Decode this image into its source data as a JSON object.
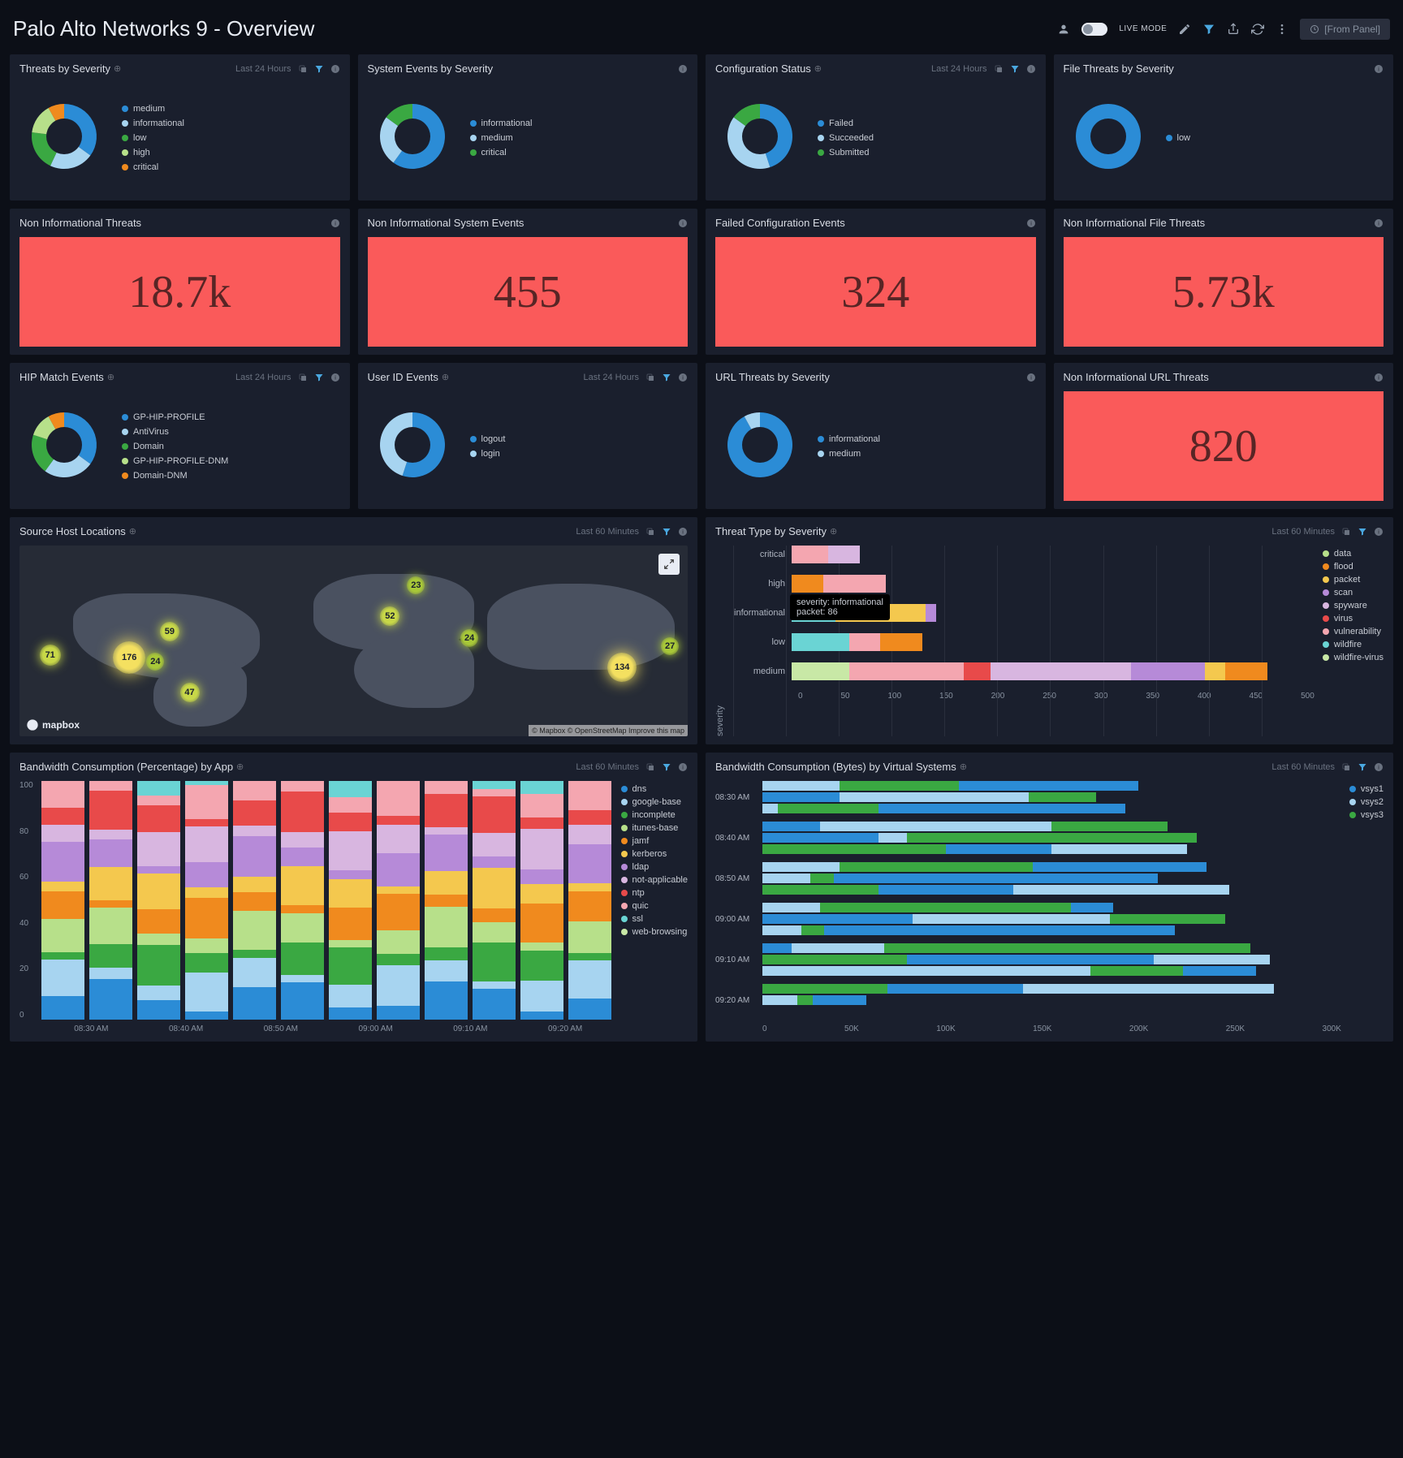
{
  "page": {
    "title": "Palo Alto Networks 9 - Overview",
    "live_mode": "LIVE MODE",
    "from_panel": "[From Panel]"
  },
  "time": {
    "last24": "Last 24 Hours",
    "last60": "Last 60 Minutes"
  },
  "colors": {
    "bg": "#0c0f17",
    "panel": "#1a1f2d",
    "alert": "#fa5a5a",
    "c1": "#2b8cd6",
    "c2": "#a7d4f0",
    "c3": "#3aa842",
    "c4": "#b7e08a",
    "c5": "#f08a1e",
    "ct_data": "#b7e08a",
    "ct_flood": "#f08a1e",
    "ct_packet": "#f4c84e",
    "ct_scan": "#b68ad8",
    "ct_spyware": "#d8b6e0",
    "ct_virus": "#e84a4a",
    "ct_vuln": "#f4a6b0",
    "ct_wf": "#6ad4d4",
    "ct_wfv": "#c8e8a6"
  },
  "donuts": [
    {
      "title": "Threats by Severity",
      "meta": "last24",
      "icons": "full",
      "segments": [
        {
          "label": "medium",
          "color": "#2b8cd6",
          "val": 35
        },
        {
          "label": "informational",
          "color": "#a7d4f0",
          "val": 22
        },
        {
          "label": "low",
          "color": "#3aa842",
          "val": 20
        },
        {
          "label": "high",
          "color": "#b7e08a",
          "val": 15
        },
        {
          "label": "critical",
          "color": "#f08a1e",
          "val": 8
        }
      ]
    },
    {
      "title": "System Events by Severity",
      "meta": "info",
      "segments": [
        {
          "label": "informational",
          "color": "#2b8cd6",
          "val": 60
        },
        {
          "label": "medium",
          "color": "#a7d4f0",
          "val": 25
        },
        {
          "label": "critical",
          "color": "#3aa842",
          "val": 15
        }
      ]
    },
    {
      "title": "Configuration Status",
      "meta": "last24",
      "icons": "full",
      "segments": [
        {
          "label": "Failed",
          "color": "#2b8cd6",
          "val": 45
        },
        {
          "label": "Succeeded",
          "color": "#a7d4f0",
          "val": 40
        },
        {
          "label": "Submitted",
          "color": "#3aa842",
          "val": 15
        }
      ]
    },
    {
      "title": "File Threats by Severity",
      "meta": "info",
      "segments": [
        {
          "label": "low",
          "color": "#2b8cd6",
          "val": 100
        }
      ]
    },
    {
      "title": "HIP Match Events",
      "meta": "last24",
      "icons": "full",
      "segments": [
        {
          "label": "GP-HIP-PROFILE",
          "color": "#2b8cd6",
          "val": 35
        },
        {
          "label": "AntiVirus",
          "color": "#a7d4f0",
          "val": 25
        },
        {
          "label": "Domain",
          "color": "#3aa842",
          "val": 20
        },
        {
          "label": "GP-HIP-PROFILE-DNM",
          "color": "#b7e08a",
          "val": 12
        },
        {
          "label": "Domain-DNM",
          "color": "#f08a1e",
          "val": 8
        }
      ]
    },
    {
      "title": "User ID Events",
      "meta": "last24",
      "icons": "full",
      "segments": [
        {
          "label": "logout",
          "color": "#2b8cd6",
          "val": 55
        },
        {
          "label": "login",
          "color": "#a7d4f0",
          "val": 45
        }
      ]
    },
    {
      "title": "URL Threats by Severity",
      "meta": "info",
      "segments": [
        {
          "label": "informational",
          "color": "#2b8cd6",
          "val": 92
        },
        {
          "label": "medium",
          "color": "#a7d4f0",
          "val": 8
        }
      ]
    }
  ],
  "bignums": [
    {
      "title": "Non Informational Threats",
      "value": "18.7k"
    },
    {
      "title": "Non Informational System Events",
      "value": "455"
    },
    {
      "title": "Failed Configuration Events",
      "value": "324"
    },
    {
      "title": "Non Informational File Threats",
      "value": "5.73k"
    },
    {
      "title": "Non Informational URL Threats",
      "value": "820"
    }
  ],
  "map": {
    "title": "Source Host Locations",
    "attrib": "© Mapbox © OpenStreetMap Improve this map",
    "logo": "mapbox",
    "markers": [
      {
        "v": "71",
        "x": 3,
        "y": 52,
        "s": 26,
        "c": "#c8d848"
      },
      {
        "v": "176",
        "x": 14,
        "y": 50,
        "s": 40,
        "c": "#f4e060"
      },
      {
        "v": "59",
        "x": 21,
        "y": 40,
        "s": 24,
        "c": "#c8d848"
      },
      {
        "v": "24",
        "x": 19,
        "y": 56,
        "s": 22,
        "c": "#a8c838"
      },
      {
        "v": "47",
        "x": 24,
        "y": 72,
        "s": 24,
        "c": "#c8d848"
      },
      {
        "v": "52",
        "x": 54,
        "y": 32,
        "s": 24,
        "c": "#c8d848"
      },
      {
        "v": "23",
        "x": 58,
        "y": 16,
        "s": 22,
        "c": "#a8c838"
      },
      {
        "v": "24",
        "x": 66,
        "y": 44,
        "s": 22,
        "c": "#a8c838"
      },
      {
        "v": "27",
        "x": 96,
        "y": 48,
        "s": 22,
        "c": "#a8c838"
      },
      {
        "v": "134",
        "x": 88,
        "y": 56,
        "s": 36,
        "c": "#f4e060"
      }
    ]
  },
  "threat_type": {
    "title": "Threat Type by Severity",
    "ylabel": "severity",
    "xmax": 500,
    "xticks": [
      "0",
      "50",
      "100",
      "150",
      "200",
      "250",
      "300",
      "350",
      "400",
      "450",
      "500"
    ],
    "tooltip": {
      "l1": "severity: informational",
      "l2": "packet: 86"
    },
    "legend": [
      {
        "label": "data",
        "color": "#b7e08a"
      },
      {
        "label": "flood",
        "color": "#f08a1e"
      },
      {
        "label": "packet",
        "color": "#f4c84e"
      },
      {
        "label": "scan",
        "color": "#b68ad8"
      },
      {
        "label": "spyware",
        "color": "#d8b6e0"
      },
      {
        "label": "virus",
        "color": "#e84a4a"
      },
      {
        "label": "vulnerability",
        "color": "#f4a6b0"
      },
      {
        "label": "wildfire",
        "color": "#6ad4d4"
      },
      {
        "label": "wildfire-virus",
        "color": "#c8e8a6"
      }
    ],
    "rows": [
      {
        "label": "critical",
        "segs": [
          {
            "c": "#f4a6b0",
            "v": 35
          },
          {
            "c": "#d8b6e0",
            "v": 30
          }
        ]
      },
      {
        "label": "high",
        "segs": [
          {
            "c": "#f08a1e",
            "v": 30
          },
          {
            "c": "#f4a6b0",
            "v": 60
          }
        ]
      },
      {
        "label": "informational",
        "segs": [
          {
            "c": "#6ad4d4",
            "v": 42
          },
          {
            "c": "#f4c84e",
            "v": 86
          },
          {
            "c": "#b68ad8",
            "v": 10
          }
        ]
      },
      {
        "label": "low",
        "segs": [
          {
            "c": "#6ad4d4",
            "v": 55
          },
          {
            "c": "#f4a6b0",
            "v": 30
          },
          {
            "c": "#f08a1e",
            "v": 40
          }
        ]
      },
      {
        "label": "medium",
        "segs": [
          {
            "c": "#c8e8a6",
            "v": 55
          },
          {
            "c": "#f4a6b0",
            "v": 110
          },
          {
            "c": "#e84a4a",
            "v": 25
          },
          {
            "c": "#d8b6e0",
            "v": 135
          },
          {
            "c": "#b68ad8",
            "v": 70
          },
          {
            "c": "#f4c84e",
            "v": 20
          },
          {
            "c": "#f08a1e",
            "v": 40
          }
        ]
      }
    ]
  },
  "bw_by_app": {
    "title": "Bandwidth Consumption (Percentage) by App",
    "yticks": [
      "100",
      "80",
      "60",
      "40",
      "20",
      "0"
    ],
    "xticks": [
      "08:30 AM",
      "08:40 AM",
      "08:50 AM",
      "09:00 AM",
      "09:10 AM",
      "09:20 AM"
    ],
    "legend": [
      {
        "label": "dns",
        "color": "#2b8cd6"
      },
      {
        "label": "google-base",
        "color": "#a7d4f0"
      },
      {
        "label": "incomplete",
        "color": "#3aa842"
      },
      {
        "label": "itunes-base",
        "color": "#b7e08a"
      },
      {
        "label": "jamf",
        "color": "#f08a1e"
      },
      {
        "label": "kerberos",
        "color": "#f4c84e"
      },
      {
        "label": "ldap",
        "color": "#b68ad8"
      },
      {
        "label": "not-applicable",
        "color": "#d8b6e0"
      },
      {
        "label": "ntp",
        "color": "#e84a4a"
      },
      {
        "label": "quic",
        "color": "#f4a6b0"
      },
      {
        "label": "ssl",
        "color": "#6ad4d4"
      },
      {
        "label": "web-browsing",
        "color": "#c8e8a6"
      }
    ],
    "cols": 12
  },
  "bw_by_vsys": {
    "title": "Bandwidth Consumption (Bytes) by Virtual Systems",
    "xmax": 300,
    "xticks": [
      "0",
      "50K",
      "100K",
      "150K",
      "200K",
      "250K",
      "300K"
    ],
    "legend": [
      {
        "label": "vsys1",
        "color": "#2b8cd6"
      },
      {
        "label": "vsys2",
        "color": "#a7d4f0"
      },
      {
        "label": "vsys3",
        "color": "#3aa842"
      }
    ],
    "rows": [
      {
        "label": "08:30 AM",
        "bars": [
          [
            93,
            40,
            62
          ],
          [
            40,
            98,
            35
          ],
          [
            128,
            8,
            52
          ]
        ]
      },
      {
        "label": "08:40 AM",
        "bars": [
          [
            30,
            120,
            60
          ],
          [
            60,
            15,
            150
          ],
          [
            55,
            70,
            95
          ]
        ]
      },
      {
        "label": "08:50 AM",
        "bars": [
          [
            90,
            40,
            100
          ],
          [
            168,
            25,
            12
          ],
          [
            70,
            112,
            60
          ]
        ]
      },
      {
        "label": "09:00 AM",
        "bars": [
          [
            22,
            30,
            130
          ],
          [
            78,
            102,
            60
          ],
          [
            182,
            20,
            12
          ]
        ]
      },
      {
        "label": "09:10 AM",
        "bars": [
          [
            15,
            48,
            190
          ],
          [
            128,
            60,
            75
          ],
          [
            38,
            170,
            48
          ]
        ]
      },
      {
        "label": "09:20 AM",
        "bars": [
          [
            70,
            130,
            65
          ],
          [
            28,
            18,
            8
          ],
          [
            0,
            0,
            0
          ]
        ]
      }
    ]
  }
}
